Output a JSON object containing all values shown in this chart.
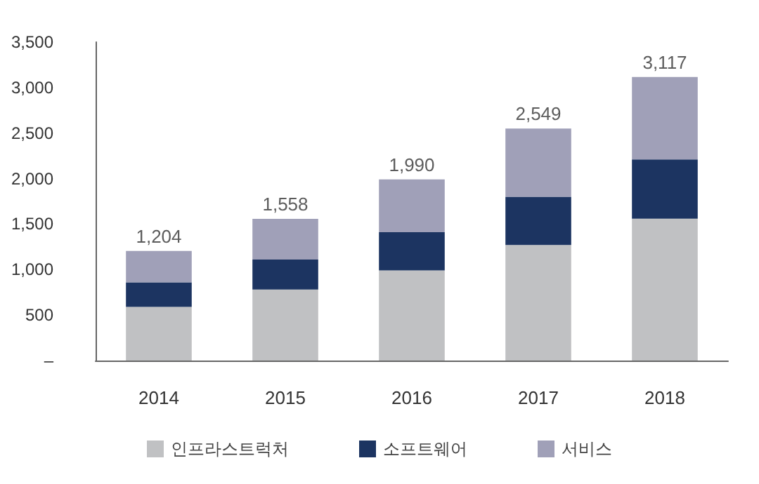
{
  "chart_data": {
    "type": "bar",
    "stacked": true,
    "categories": [
      "2014",
      "2015",
      "2016",
      "2017",
      "2018"
    ],
    "series": [
      {
        "name": "인프라스트럭처",
        "color": "#c0c1c3",
        "values": [
          590,
          780,
          990,
          1270,
          1560
        ]
      },
      {
        "name": "소프트웨어",
        "color": "#1c3461",
        "values": [
          270,
          330,
          420,
          530,
          650
        ]
      },
      {
        "name": "서비스",
        "color": "#a0a0b8",
        "values": [
          344,
          448,
          580,
          749,
          907
        ]
      }
    ],
    "totals": [
      "1,204",
      "1,558",
      "1,990",
      "2,549",
      "3,117"
    ],
    "ylim": [
      0,
      3500
    ],
    "yticks": [
      {
        "value": 0,
        "label": "–"
      },
      500,
      {
        "value": 1000,
        "label": "1,000"
      },
      {
        "value": 1500,
        "label": "1,500"
      },
      {
        "value": 2000,
        "label": "2,000"
      },
      {
        "value": 2500,
        "label": "2,500"
      },
      {
        "value": 3000,
        "label": "3,000"
      },
      {
        "value": 3500,
        "label": "3,500"
      }
    ],
    "grid": false,
    "legend": "bottom"
  }
}
